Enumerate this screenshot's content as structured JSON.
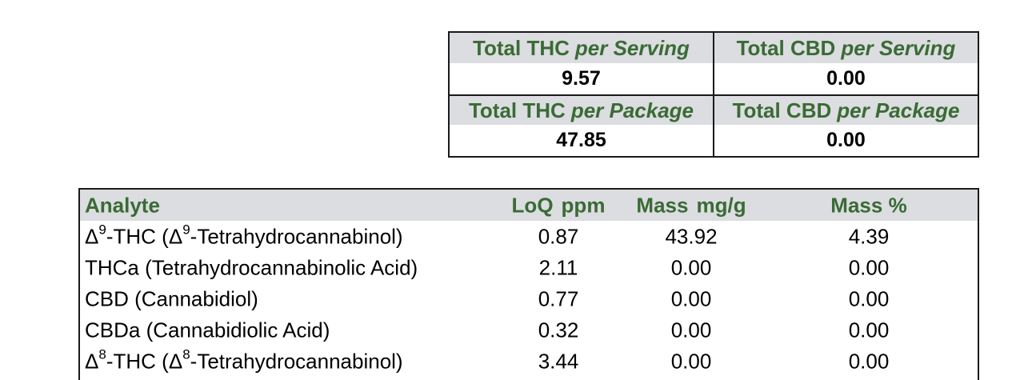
{
  "summary": {
    "thc_serving_label": "Total THC",
    "thc_serving_suffix": "per Serving",
    "cbd_serving_label": "Total CBD",
    "cbd_serving_suffix": "per Serving",
    "thc_serving_value": "9.57",
    "cbd_serving_value": "0.00",
    "thc_package_label": "Total THC",
    "thc_package_suffix": "per Package",
    "cbd_package_label": "Total CBD",
    "cbd_package_suffix": "per Package",
    "thc_package_value": "47.85",
    "cbd_package_value": "0.00"
  },
  "analytes": {
    "headers": {
      "analyte": "Analyte",
      "loq_a": "LoQ",
      "loq_b": "ppm",
      "mass_a": "Mass",
      "mass_b": "mg/g",
      "mass_pct": "Mass %"
    },
    "rows": [
      {
        "delta": "Δ",
        "sup1": "9",
        "name_mid": "-THC (Δ",
        "sup2": "9",
        "name_end": "-Tetrahydrocannabinol)",
        "loq": "0.87",
        "mass_mgg": "43.92",
        "mass_pct": "4.39"
      },
      {
        "name": "THCa (Tetrahydrocannabinolic Acid)",
        "loq": "2.11",
        "mass_mgg": "0.00",
        "mass_pct": "0.00"
      },
      {
        "name": "CBD (Cannabidiol)",
        "loq": "0.77",
        "mass_mgg": "0.00",
        "mass_pct": "0.00"
      },
      {
        "name": "CBDa (Cannabidiolic Acid)",
        "loq": "0.32",
        "mass_mgg": "0.00",
        "mass_pct": "0.00"
      },
      {
        "delta": "Δ",
        "sup1": "8",
        "name_mid": "-THC (Δ",
        "sup2": "8",
        "name_end": "-Tetrahydrocannabinol)",
        "loq": "3.44",
        "mass_mgg": "0.00",
        "mass_pct": "0.00"
      }
    ]
  }
}
